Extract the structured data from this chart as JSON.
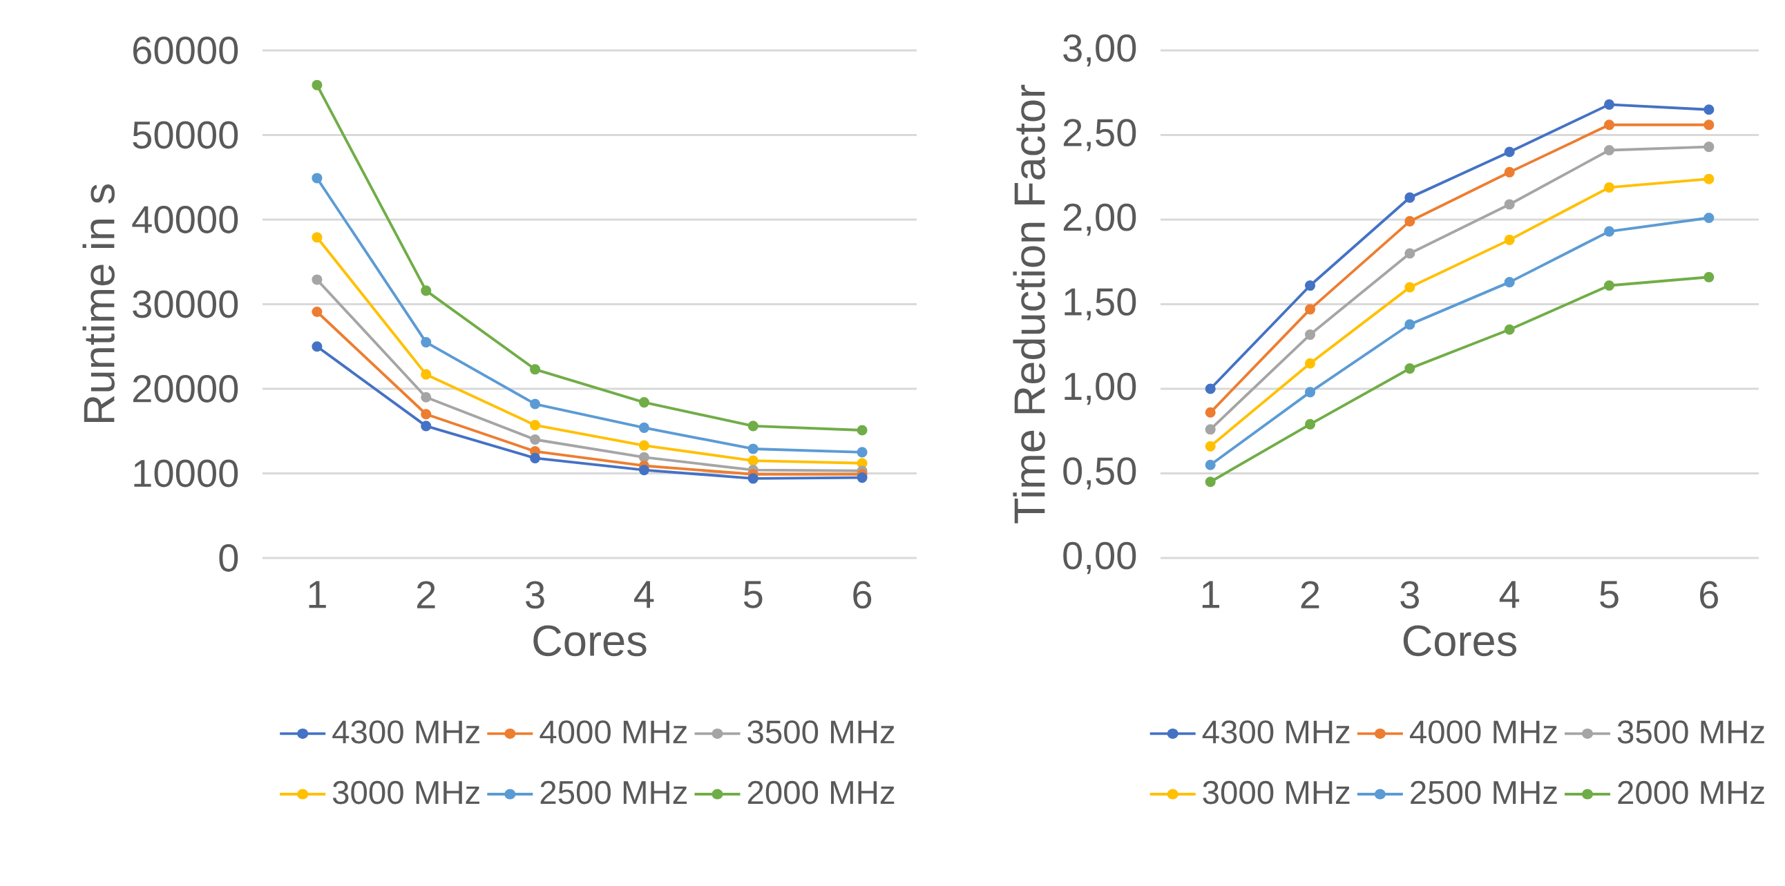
{
  "chart_data": [
    {
      "type": "line",
      "xlabel": "Cores",
      "ylabel": "Runtime in s",
      "categories": [
        "1",
        "2",
        "3",
        "4",
        "5",
        "6"
      ],
      "ylim": [
        0,
        60000
      ],
      "yticks": [
        0,
        10000,
        20000,
        30000,
        40000,
        50000,
        60000
      ],
      "grid": "y",
      "legend": "bottom",
      "marker": "circle",
      "line_style": "solid",
      "series": [
        {
          "name": "4300 MHz",
          "color": "#4472c4",
          "values": [
            25000,
            15600,
            11800,
            10400,
            9400,
            9500
          ]
        },
        {
          "name": "4000 MHz",
          "color": "#ed7d31",
          "values": [
            29100,
            17000,
            12600,
            10900,
            9900,
            9900
          ]
        },
        {
          "name": "3500 MHz",
          "color": "#a5a5a5",
          "values": [
            32900,
            19000,
            14000,
            11900,
            10400,
            10300
          ]
        },
        {
          "name": "3000 MHz",
          "color": "#ffc000",
          "values": [
            37900,
            21700,
            15700,
            13300,
            11500,
            11200
          ]
        },
        {
          "name": "2500 MHz",
          "color": "#5b9bd5",
          "values": [
            44900,
            25500,
            18200,
            15400,
            12900,
            12500
          ]
        },
        {
          "name": "2000 MHz",
          "color": "#70ad47",
          "values": [
            55900,
            31600,
            22300,
            18400,
            15600,
            15100
          ]
        }
      ]
    },
    {
      "type": "line",
      "xlabel": "Cores",
      "ylabel": "Time Reduction Factor",
      "categories": [
        "1",
        "2",
        "3",
        "4",
        "5",
        "6"
      ],
      "ylim": [
        0,
        3
      ],
      "yticks": [
        {
          "value": 0,
          "label": "0,00"
        },
        {
          "value": 0.5,
          "label": "0,50"
        },
        {
          "value": 1,
          "label": "1,00"
        },
        {
          "value": 1.5,
          "label": "1,50"
        },
        {
          "value": 2,
          "label": "2,00"
        },
        {
          "value": 2.5,
          "label": "2,50"
        },
        {
          "value": 3,
          "label": "3,00"
        }
      ],
      "grid": "y",
      "legend": "bottom",
      "marker": "circle",
      "line_style": "solid",
      "series": [
        {
          "name": "4300 MHz",
          "color": "#4472c4",
          "values": [
            1.0,
            1.61,
            2.13,
            2.4,
            2.68,
            2.65
          ]
        },
        {
          "name": "4000 MHz",
          "color": "#ed7d31",
          "values": [
            0.86,
            1.47,
            1.99,
            2.28,
            2.56,
            2.56
          ]
        },
        {
          "name": "3500 MHz",
          "color": "#a5a5a5",
          "values": [
            0.76,
            1.32,
            1.8,
            2.09,
            2.41,
            2.43
          ]
        },
        {
          "name": "3000 MHz",
          "color": "#ffc000",
          "values": [
            0.66,
            1.15,
            1.6,
            1.88,
            2.19,
            2.24
          ]
        },
        {
          "name": "2500 MHz",
          "color": "#5b9bd5",
          "values": [
            0.55,
            0.98,
            1.38,
            1.63,
            1.93,
            2.01
          ]
        },
        {
          "name": "2000 MHz",
          "color": "#70ad47",
          "values": [
            0.45,
            0.79,
            1.12,
            1.35,
            1.61,
            1.66
          ]
        }
      ]
    }
  ]
}
